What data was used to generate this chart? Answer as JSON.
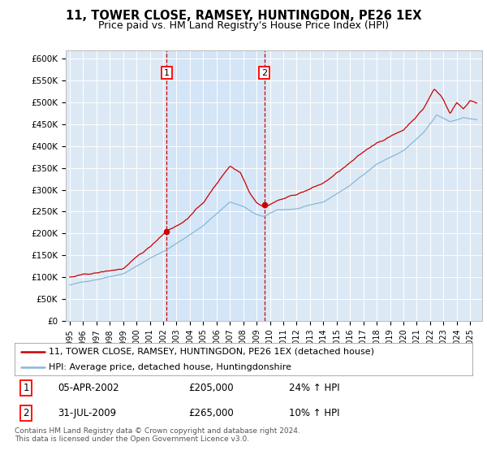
{
  "title": "11, TOWER CLOSE, RAMSEY, HUNTINGDON, PE26 1EX",
  "subtitle": "Price paid vs. HM Land Registry's House Price Index (HPI)",
  "ylim": [
    0,
    620000
  ],
  "yticks": [
    0,
    50000,
    100000,
    150000,
    200000,
    250000,
    300000,
    350000,
    400000,
    450000,
    500000,
    550000,
    600000
  ],
  "ytick_labels": [
    "£0",
    "£50K",
    "£100K",
    "£150K",
    "£200K",
    "£250K",
    "£300K",
    "£350K",
    "£400K",
    "£450K",
    "£500K",
    "£550K",
    "£600K"
  ],
  "line1_color": "#cc0000",
  "line2_color": "#88b8d8",
  "bg_color": "#dce9f5",
  "shade_color": "#d0e4f7",
  "sale1_date": "05-APR-2002",
  "sale1_price": 205000,
  "sale1_hpi_label": "24% ↑ HPI",
  "sale1_year": 2002.27,
  "sale2_date": "31-JUL-2009",
  "sale2_price": 265000,
  "sale2_hpi_label": "10% ↑ HPI",
  "sale2_year": 2009.58,
  "legend_label1": "11, TOWER CLOSE, RAMSEY, HUNTINGDON, PE26 1EX (detached house)",
  "legend_label2": "HPI: Average price, detached house, Huntingdonshire",
  "footnote1": "Contains HM Land Registry data © Crown copyright and database right 2024.",
  "footnote2": "This data is licensed under the Open Government Licence v3.0.",
  "title_fontsize": 10.5,
  "subtitle_fontsize": 9,
  "xstart": 1995,
  "xend": 2025
}
